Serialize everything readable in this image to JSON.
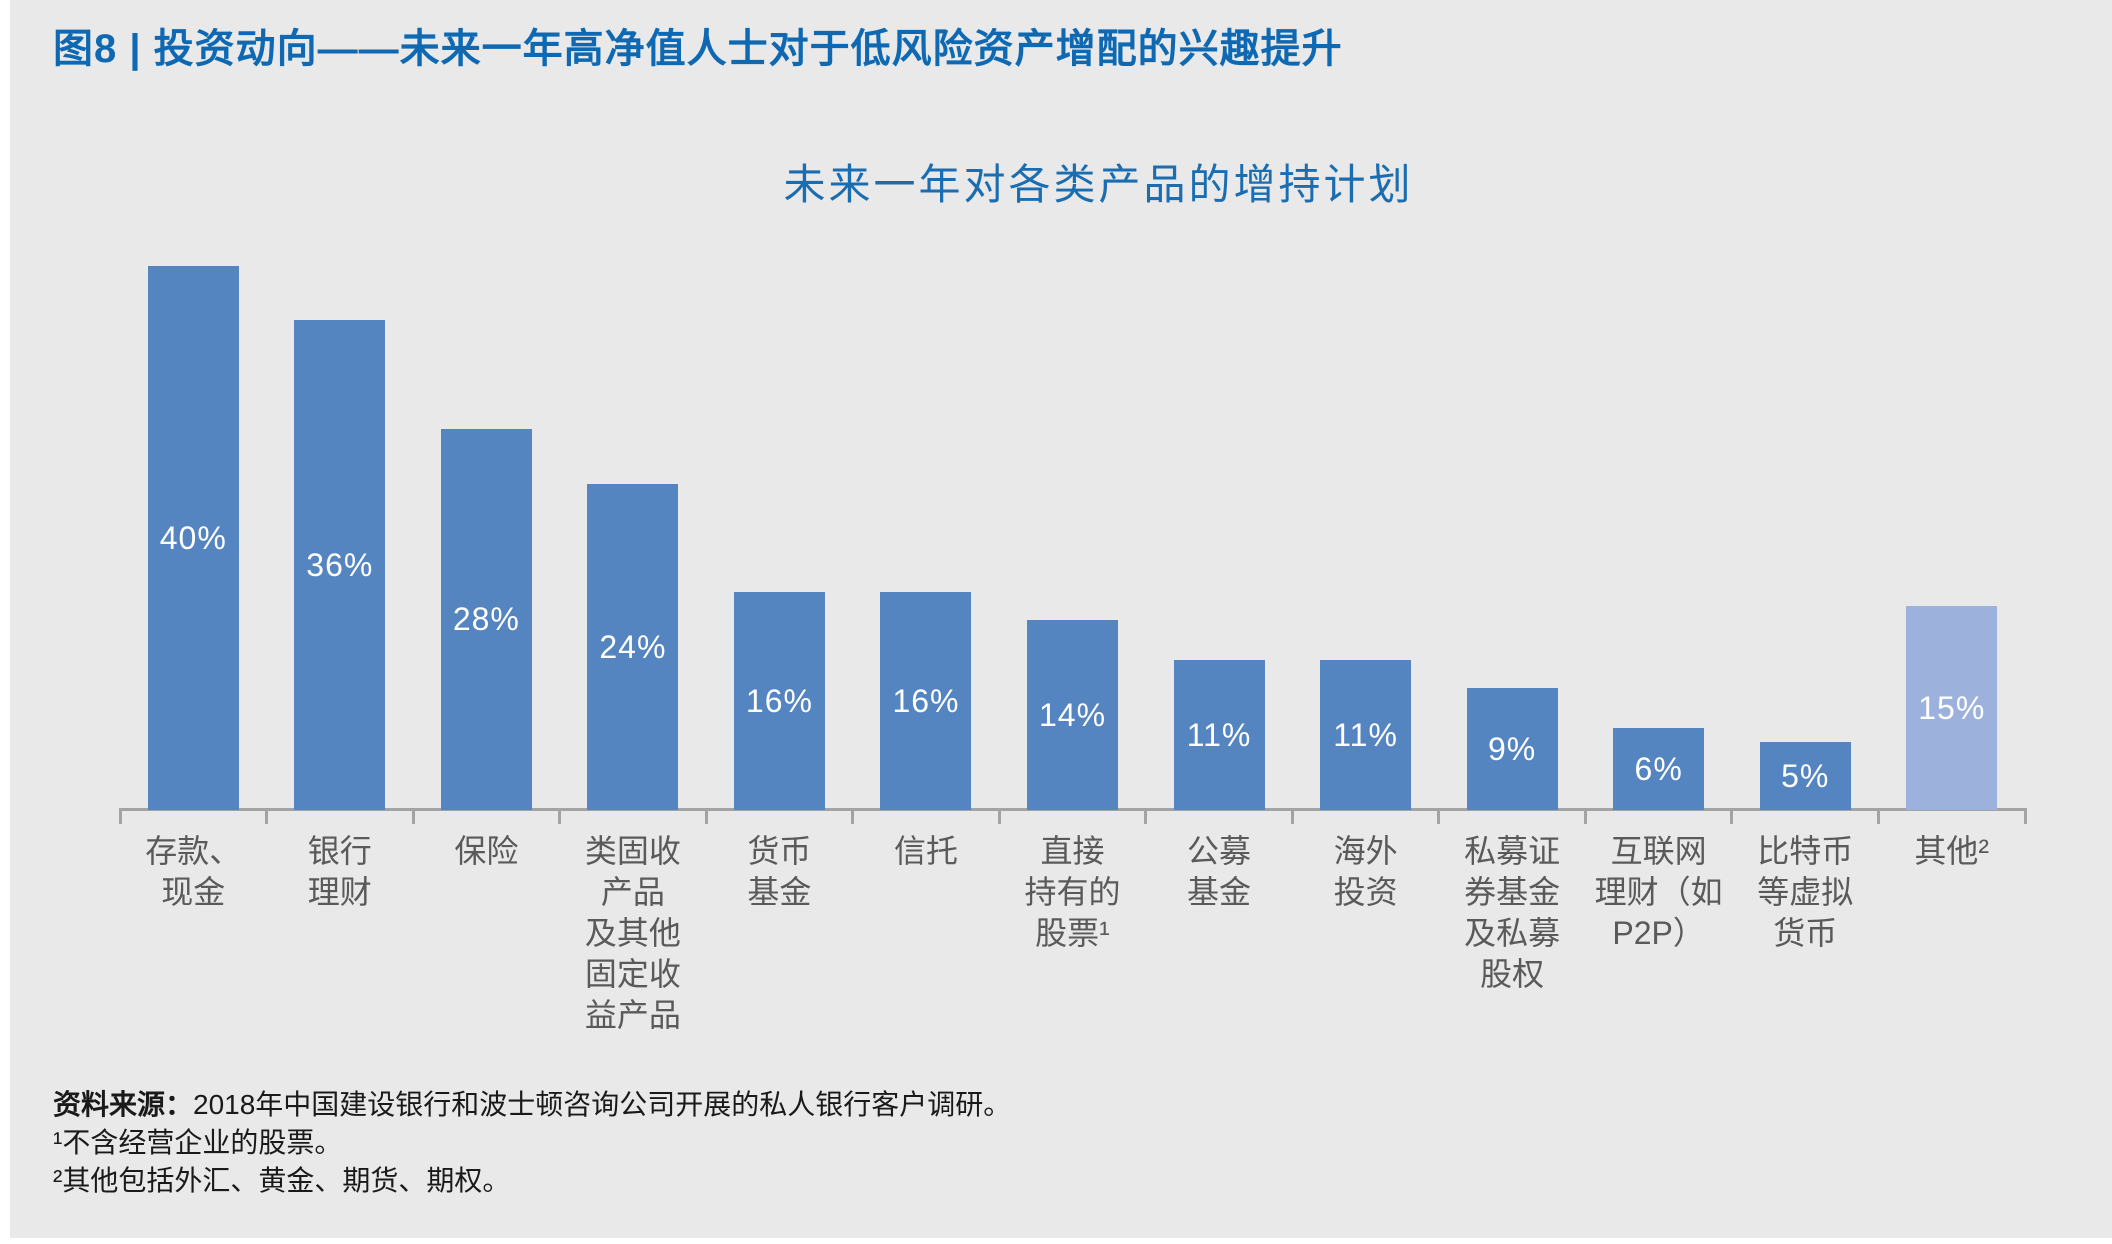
{
  "figure": {
    "title": "图8 | 投资动向——未来一年高净值人士对于低风险资产增配的兴趣提升"
  },
  "chart_data": {
    "type": "bar",
    "title": "未来一年对各类产品的增持计划",
    "categories": [
      "存款、现金",
      "银行理财",
      "保险",
      "类固收产品及其他固定收益产品",
      "货币基金",
      "信托",
      "直接持有的股票¹",
      "公募基金",
      "海外投资",
      "私募证券基金及私募股权",
      "互联网理财（如P2P）",
      "比特币等虚拟货币",
      "其他²"
    ],
    "category_lines": [
      [
        "存款、",
        "现金"
      ],
      [
        "银行",
        "理财"
      ],
      [
        "保险"
      ],
      [
        "类固收",
        "产品",
        "及其他",
        "固定收",
        "益产品"
      ],
      [
        "货币",
        "基金"
      ],
      [
        "信托"
      ],
      [
        "直接",
        "持有的",
        "股票¹"
      ],
      [
        "公募",
        "基金"
      ],
      [
        "海外",
        "投资"
      ],
      [
        "私募证",
        "券基金",
        "及私募",
        "股权"
      ],
      [
        "互联网",
        "理财（如",
        "P2P）"
      ],
      [
        "比特币",
        "等虚拟",
        "货币"
      ],
      [
        "其他²"
      ]
    ],
    "values": [
      40,
      36,
      28,
      24,
      16,
      16,
      14,
      11,
      11,
      9,
      6,
      5,
      15
    ],
    "value_labels": [
      "40%",
      "36%",
      "28%",
      "24%",
      "16%",
      "16%",
      "14%",
      "11%",
      "11%",
      "9%",
      "6%",
      "5%",
      "15%"
    ],
    "highlight_index": 12,
    "value_label_position": "inside-center",
    "unit": "%",
    "ylim": [
      0,
      45
    ],
    "grid": false,
    "legend": false
  },
  "colors": {
    "title_blue": "#0e69b2",
    "subtitle_blue": "#1b6db1",
    "bar_blue": "#5585c1",
    "bar_highlight_light_blue": "#9db1dd",
    "axis_gray": "#a3a3a3",
    "category_label_gray": "#5a5a5a",
    "panel_background": "#e9e9e9",
    "value_label_white": "#ffffff"
  },
  "source": {
    "label": "资料来源：",
    "text": "2018年中国建设银行和波士顿咨询公司开展的私人银行客户调研。",
    "notes": [
      "¹不含经营企业的股票。",
      "²其他包括外汇、黄金、期货、期权。"
    ]
  }
}
